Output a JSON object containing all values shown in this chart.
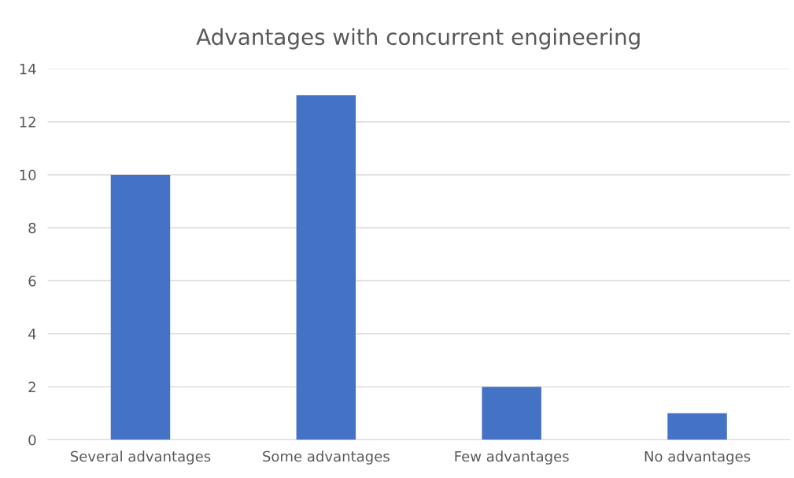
{
  "chart_data": {
    "type": "bar",
    "title": "Advantages with concurrent engineering",
    "categories": [
      "Several advantages",
      "Some advantages",
      "Few advantages",
      "No advantages"
    ],
    "values": [
      10,
      13,
      2,
      1
    ],
    "color": "#4472c4",
    "ylim": [
      0,
      14
    ],
    "yticks": [
      0,
      2,
      4,
      6,
      8,
      10,
      12,
      14
    ],
    "grid": "y"
  }
}
